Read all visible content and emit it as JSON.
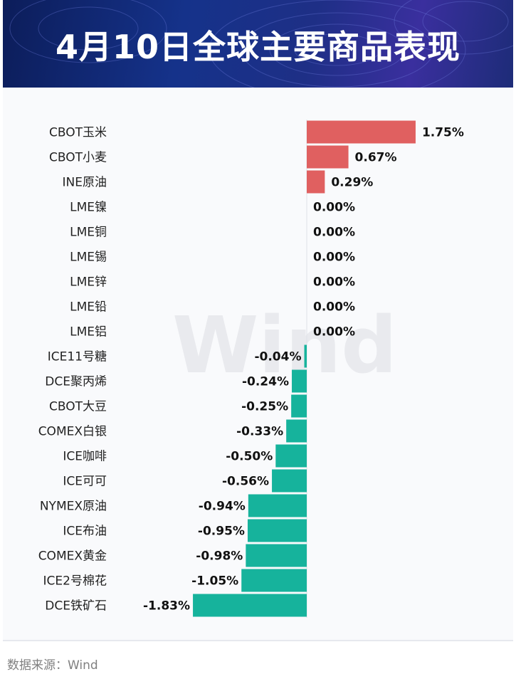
{
  "header": {
    "title": "4月10日全球主要商品表现"
  },
  "watermark": "Wind",
  "footer": {
    "source": "数据来源：Wind"
  },
  "colors": {
    "positive": "#e06060",
    "negative": "#16b39c",
    "banner": "#15328a"
  },
  "chart_data": {
    "type": "bar",
    "orientation": "horizontal",
    "categories": [
      "CBOT玉米",
      "CBOT小麦",
      "INE原油",
      "LME镍",
      "LME铜",
      "LME锡",
      "LME锌",
      "LME铅",
      "LME铝",
      "ICE11号糖",
      "DCE聚丙烯",
      "CBOT大豆",
      "COMEX白银",
      "ICE咖啡",
      "ICE可可",
      "NYMEX原油",
      "ICE布油",
      "COMEX黄金",
      "ICE2号棉花",
      "DCE铁矿石"
    ],
    "values": [
      1.75,
      0.67,
      0.29,
      0.0,
      0.0,
      0.0,
      0.0,
      0.0,
      0.0,
      -0.04,
      -0.24,
      -0.25,
      -0.33,
      -0.5,
      -0.56,
      -0.94,
      -0.95,
      -0.98,
      -1.05,
      -1.83
    ],
    "labels": [
      "1.75%",
      "0.67%",
      "0.29%",
      "0.00%",
      "0.00%",
      "0.00%",
      "0.00%",
      "0.00%",
      "0.00%",
      "-0.04%",
      "-0.24%",
      "-0.25%",
      "-0.33%",
      "-0.50%",
      "-0.56%",
      "-0.94%",
      "-0.95%",
      "-0.98%",
      "-1.05%",
      "-1.83%"
    ],
    "unit": "%",
    "grid": false,
    "legend": "none"
  }
}
